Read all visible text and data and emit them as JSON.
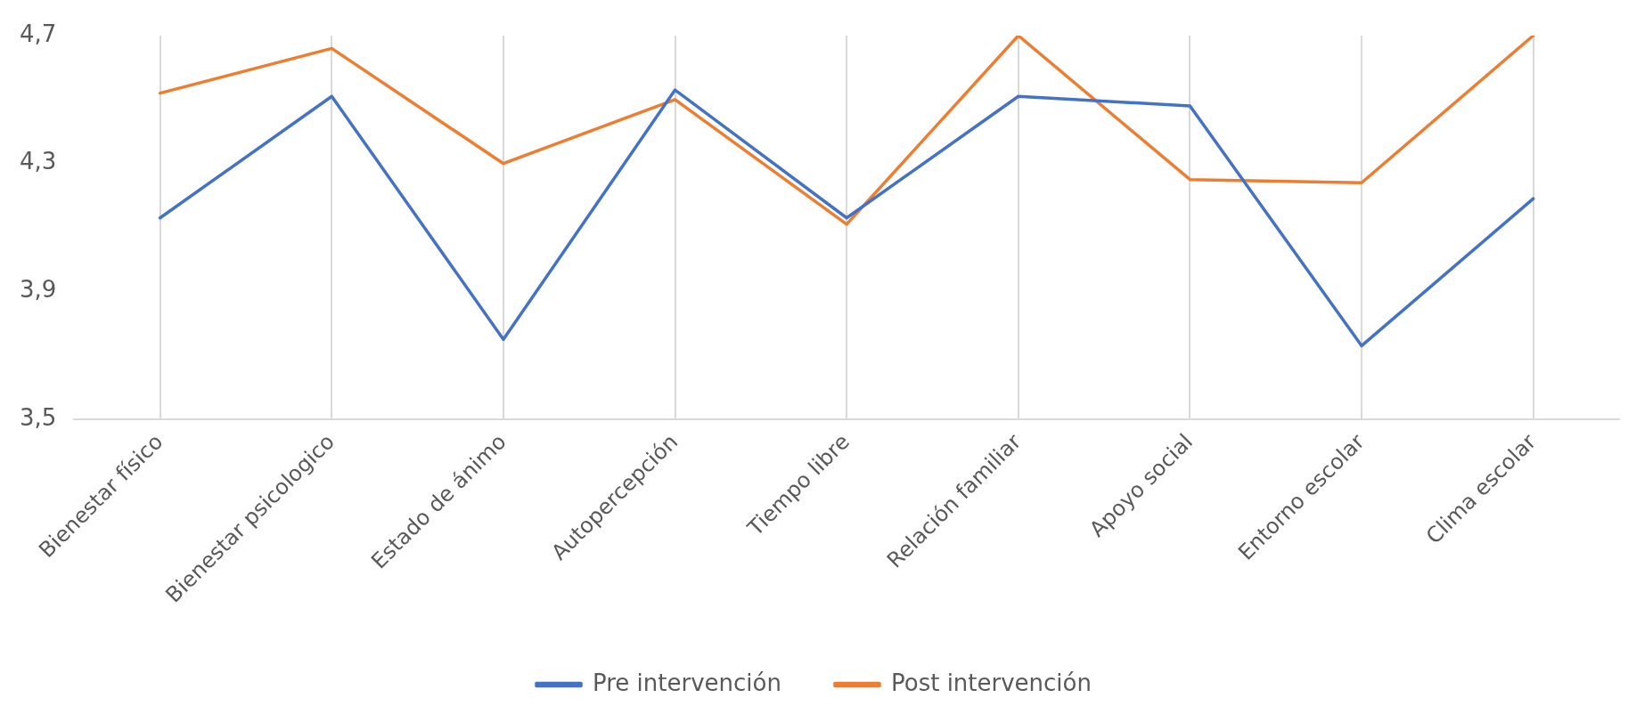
{
  "chart_data": {
    "type": "line",
    "categories": [
      "Bienestar físico",
      "Bienestar psicologico",
      "Estado de ánimo",
      "Autopercepción",
      "Tiempo libre",
      "Relación familiar",
      "Apoyo social",
      "Entorno escolar",
      "Clima escolar"
    ],
    "series": [
      {
        "name": "Pre intervención",
        "color": "#4472c4",
        "values": [
          4.13,
          4.51,
          3.75,
          4.53,
          4.13,
          4.51,
          4.48,
          3.73,
          4.19
        ]
      },
      {
        "name": "Post intervención",
        "color": "#ed7d31",
        "values": [
          4.52,
          4.66,
          4.3,
          4.5,
          4.11,
          4.7,
          4.25,
          4.24,
          4.7
        ]
      }
    ],
    "ylim": [
      3.5,
      4.7
    ],
    "yticks": [
      {
        "value": 3.5,
        "label": "3,5"
      },
      {
        "value": 3.9,
        "label": "3,9"
      },
      {
        "value": 4.3,
        "label": "4,3"
      },
      {
        "value": 4.7,
        "label": "4,7"
      }
    ],
    "grid": "x",
    "legend": "bottom",
    "marker": "none",
    "line_style": "solid"
  }
}
